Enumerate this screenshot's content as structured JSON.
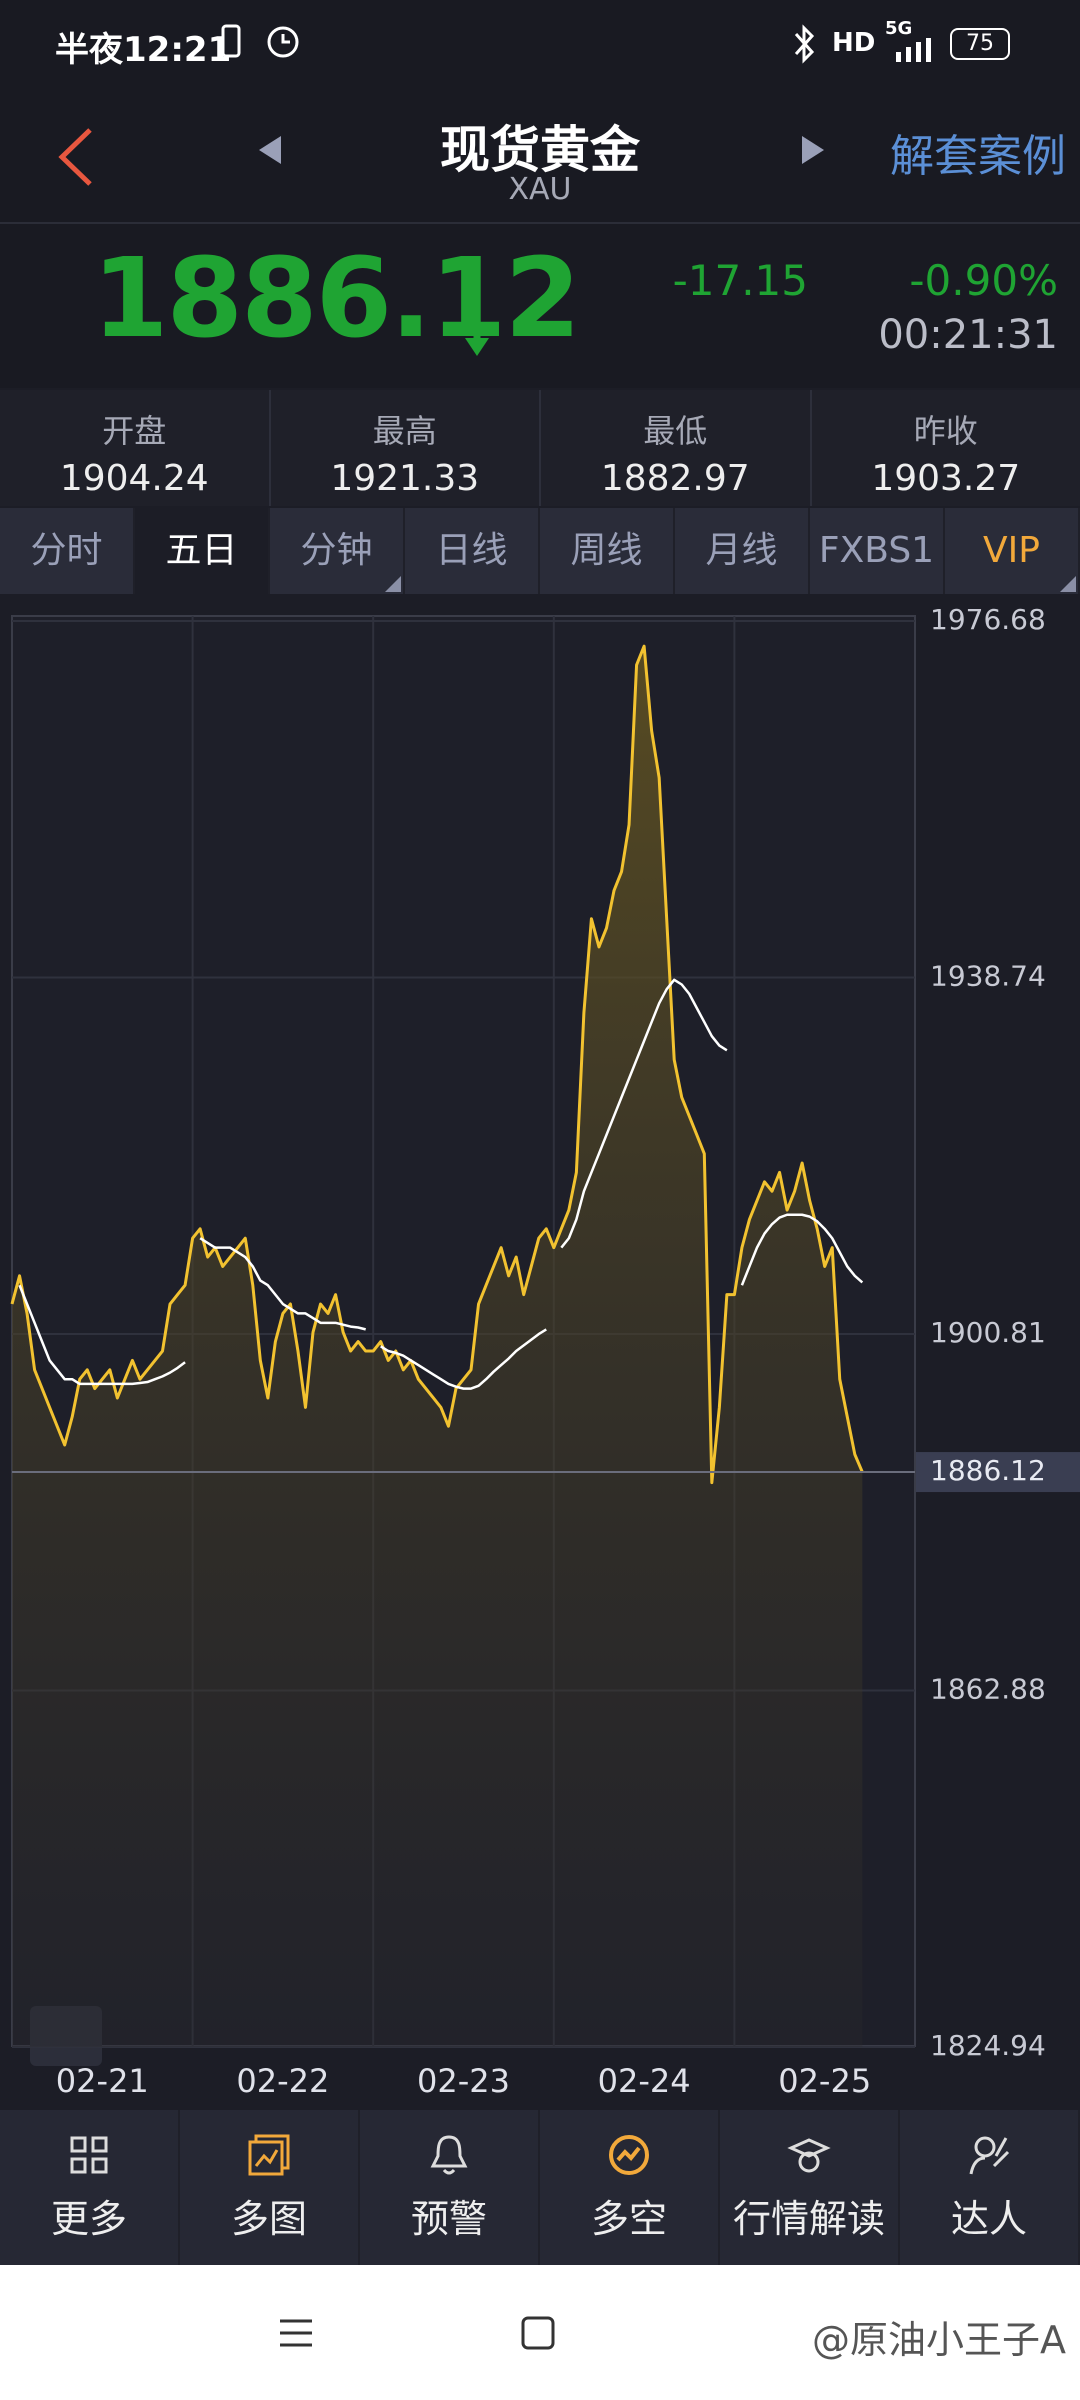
{
  "status_bar": {
    "time": "半夜12:21",
    "hd": "HD",
    "network": "5G",
    "battery": "75"
  },
  "header": {
    "title": "现货黄金",
    "symbol": "XAU",
    "link": "解套案例"
  },
  "quote": {
    "price": "1886.12",
    "change": "-17.15",
    "change_percent": "-0.90%",
    "time": "00:21:31"
  },
  "stats": [
    {
      "label": "开盘",
      "value": "1904.24"
    },
    {
      "label": "最高",
      "value": "1921.33"
    },
    {
      "label": "最低",
      "value": "1882.97"
    },
    {
      "label": "昨收",
      "value": "1903.27"
    }
  ],
  "tabs": [
    "分时",
    "五日",
    "分钟",
    "日线",
    "周线",
    "月线",
    "FXBS1",
    "VIP"
  ],
  "chart_data": {
    "type": "line",
    "days": [
      "02-21",
      "02-22",
      "02-23",
      "02-24",
      "02-25"
    ],
    "series": [
      {
        "color": "#f2c230",
        "values": [
          1904,
          1907,
          1903,
          1897,
          1895,
          1893,
          1891,
          1889,
          1892,
          1896,
          1897,
          1895,
          1896,
          1897,
          1894,
          1896,
          1898,
          1896,
          1897,
          1898,
          1899,
          1904,
          1905,
          1906,
          1911,
          1912,
          1909,
          1910,
          1908,
          1909,
          1910,
          1911,
          1906,
          1898,
          1894,
          1900,
          1903,
          1904,
          1899,
          1893,
          1901,
          1904,
          1903,
          1905,
          1901,
          1899,
          1900,
          1899,
          1899,
          1900,
          1898,
          1899,
          1897,
          1898,
          1896,
          1895,
          1894,
          1893,
          1891,
          1895,
          1896,
          1897,
          1904,
          1906,
          1908,
          1910,
          1907,
          1909,
          1905,
          1908,
          1911,
          1912,
          1910,
          1912,
          1914,
          1918,
          1935,
          1945,
          1942,
          1944,
          1948,
          1950,
          1955,
          1972,
          1974,
          1965,
          1960,
          1945,
          1930,
          1926,
          1924,
          1922,
          1920,
          1885,
          1893,
          1905,
          1905,
          1910,
          1913,
          1915,
          1917,
          1916,
          1918,
          1914,
          1916,
          1919,
          1915,
          1912,
          1908,
          1910,
          1896,
          1892,
          1888,
          1886.12,
          null,
          null,
          null,
          null,
          null,
          null
        ]
      },
      {
        "color": "#ffffff",
        "values": [
          null,
          1906,
          1904,
          1902,
          1900,
          1898,
          1897,
          1896,
          1896,
          1895.5,
          1895.5,
          1895.5,
          1895.5,
          1895.5,
          1895.5,
          1895.5,
          1895.5,
          1895.6,
          1895.7,
          1896,
          1896.3,
          1896.7,
          1897.2,
          1897.8,
          null,
          1911,
          1910.5,
          1910,
          1910,
          1910,
          1909.5,
          1909,
          1908,
          1906.5,
          1906,
          1905,
          1904,
          1903.5,
          1903,
          1903,
          1902.5,
          1902,
          1902,
          1902,
          1901.8,
          1901.6,
          1901.5,
          1901.3,
          null,
          1899.5,
          1899,
          1898.8,
          1898.5,
          1898,
          1897.5,
          1897,
          1896.5,
          1896,
          1895.5,
          1895.2,
          1895,
          1895,
          1895.3,
          1896,
          1896.8,
          1897.5,
          1898.2,
          1899,
          1899.6,
          1900.2,
          1900.8,
          1901.3,
          null,
          1910,
          1911,
          1913,
          1916,
          1918,
          1920,
          1922,
          1924,
          1926,
          1928,
          1930,
          1932,
          1934,
          1936,
          1937.5,
          1938.5,
          1938,
          1937,
          1935.5,
          1934,
          1932.5,
          1931.5,
          1931,
          null,
          1906,
          1908,
          1910,
          1911.5,
          1912.5,
          1913.2,
          1913.5,
          1913.5,
          1913.5,
          1913.3,
          1912.8,
          1912,
          1911,
          1909.5,
          1908,
          1907,
          1906.3,
          null,
          null,
          null,
          null,
          null,
          null
        ]
      }
    ],
    "ylim": [
      1824.94,
      1976.68
    ],
    "yticks": [
      1824.94,
      1862.88,
      1900.81,
      1938.74,
      1976.68
    ],
    "last_price": 1886.12,
    "grid": true
  },
  "toolbar": [
    "更多",
    "多图",
    "预警",
    "多空",
    "行情解读",
    "达人"
  ],
  "watermark": "@原油小王子A"
}
